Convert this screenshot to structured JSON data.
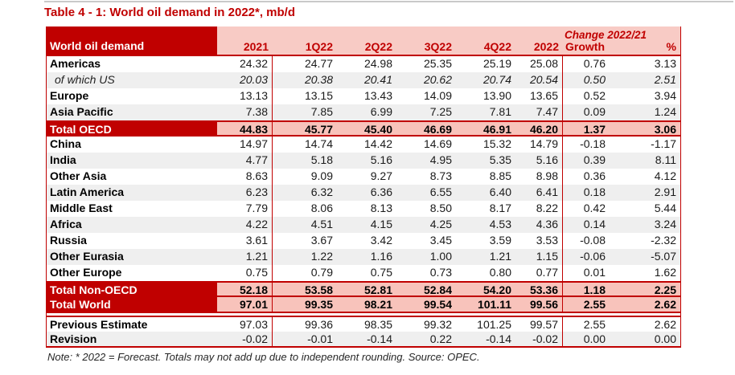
{
  "title": "Table 4 - 1: World oil demand in 2022*, mb/d",
  "table": {
    "corner_label": "World oil demand",
    "change_header": "Change 2022/21",
    "columns": [
      "2021",
      "1Q22",
      "2Q22",
      "3Q22",
      "4Q22",
      "2022",
      "Growth",
      "%"
    ],
    "rows": [
      {
        "label": "Americas",
        "style": "normal",
        "values": [
          "24.32",
          "24.77",
          "24.98",
          "25.35",
          "25.19",
          "25.08",
          "0.76",
          "3.13"
        ]
      },
      {
        "label": "of which US",
        "style": "italic",
        "values": [
          "20.03",
          "20.38",
          "20.41",
          "20.62",
          "20.74",
          "20.54",
          "0.50",
          "2.51"
        ]
      },
      {
        "label": "Europe",
        "style": "normal",
        "values": [
          "13.13",
          "13.15",
          "13.43",
          "14.09",
          "13.90",
          "13.65",
          "0.52",
          "3.94"
        ]
      },
      {
        "label": "Asia Pacific",
        "style": "normal",
        "values": [
          "7.38",
          "7.85",
          "6.99",
          "7.25",
          "7.81",
          "7.47",
          "0.09",
          "1.24"
        ]
      },
      {
        "label": "Total OECD",
        "style": "total",
        "values": [
          "44.83",
          "45.77",
          "45.40",
          "46.69",
          "46.91",
          "46.20",
          "1.37",
          "3.06"
        ]
      },
      {
        "label": "China",
        "style": "normal",
        "values": [
          "14.97",
          "14.74",
          "14.42",
          "14.69",
          "15.32",
          "14.79",
          "-0.18",
          "-1.17"
        ]
      },
      {
        "label": "India",
        "style": "normal",
        "values": [
          "4.77",
          "5.18",
          "5.16",
          "4.95",
          "5.35",
          "5.16",
          "0.39",
          "8.11"
        ]
      },
      {
        "label": "Other Asia",
        "style": "normal",
        "values": [
          "8.63",
          "9.09",
          "9.27",
          "8.73",
          "8.85",
          "8.98",
          "0.36",
          "4.12"
        ]
      },
      {
        "label": "Latin America",
        "style": "normal",
        "values": [
          "6.23",
          "6.32",
          "6.36",
          "6.55",
          "6.40",
          "6.41",
          "0.18",
          "2.91"
        ]
      },
      {
        "label": "Middle East",
        "style": "normal",
        "values": [
          "7.79",
          "8.06",
          "8.13",
          "8.50",
          "8.17",
          "8.22",
          "0.42",
          "5.44"
        ]
      },
      {
        "label": "Africa",
        "style": "normal",
        "values": [
          "4.22",
          "4.51",
          "4.15",
          "4.25",
          "4.53",
          "4.36",
          "0.14",
          "3.24"
        ]
      },
      {
        "label": "Russia",
        "style": "normal",
        "values": [
          "3.61",
          "3.67",
          "3.42",
          "3.45",
          "3.59",
          "3.53",
          "-0.08",
          "-2.32"
        ]
      },
      {
        "label": "Other Eurasia",
        "style": "normal",
        "values": [
          "1.21",
          "1.22",
          "1.16",
          "1.00",
          "1.21",
          "1.15",
          "-0.06",
          "-5.07"
        ]
      },
      {
        "label": "Other Europe",
        "style": "normal",
        "values": [
          "0.75",
          "0.79",
          "0.75",
          "0.73",
          "0.80",
          "0.77",
          "0.01",
          "1.62"
        ]
      },
      {
        "label": "Total Non-OECD",
        "style": "total",
        "values": [
          "52.18",
          "53.58",
          "52.81",
          "52.84",
          "54.20",
          "53.36",
          "1.18",
          "2.25"
        ]
      },
      {
        "label": "Total World",
        "style": "total-world",
        "values": [
          "97.01",
          "99.35",
          "98.21",
          "99.54",
          "101.11",
          "99.56",
          "2.55",
          "2.62"
        ]
      },
      {
        "label": "Previous Estimate",
        "style": "estimate",
        "values": [
          "97.03",
          "99.36",
          "98.35",
          "99.32",
          "101.25",
          "99.57",
          "2.55",
          "2.62"
        ]
      },
      {
        "label": "Revision",
        "style": "revision",
        "values": [
          "-0.02",
          "-0.01",
          "-0.14",
          "0.22",
          "-0.14",
          "-0.02",
          "0.00",
          "0.00"
        ]
      }
    ]
  },
  "note": "Note: * 2022 = Forecast. Totals may not add up due to independent rounding. Source: OPEC.",
  "colors": {
    "accent_dark_red": "#C00000",
    "header_pink": "#F8CBC5",
    "total_pink": "#F8C3BB",
    "stripe_gray": "#EFEFEF"
  }
}
